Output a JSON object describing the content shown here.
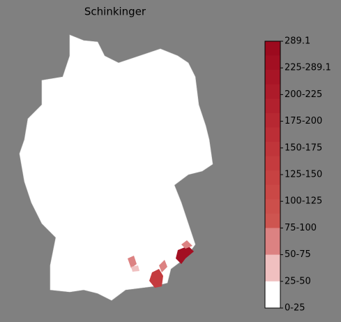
{
  "title": "Schinkinger",
  "colorbar": {
    "labels": [
      "289.1",
      "225-289.1",
      "200-225",
      "175-200",
      "150-175",
      "125-150",
      "100-125",
      "75-100",
      "50-75",
      "25-50",
      "0-25"
    ],
    "colors": [
      "#9c0a1e",
      "#a20f22",
      "#a81526",
      "#ad1b2a",
      "#b2212e",
      "#b72832",
      "#bc2e36",
      "#c0353a",
      "#c43b3e",
      "#c74242",
      "#ca4846",
      "#cc4f4b",
      "#ce5550",
      "#dc8282",
      "#f0c0c0",
      "#ffffff"
    ]
  }
}
